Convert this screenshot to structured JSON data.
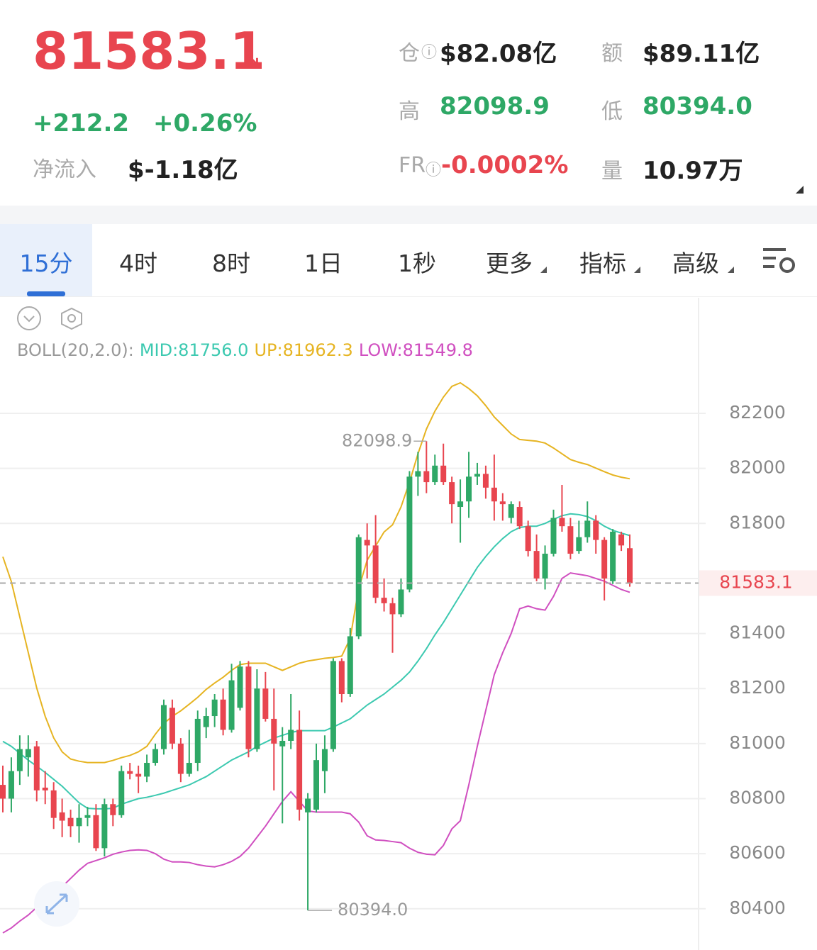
{
  "header": {
    "price": "81583.1",
    "change": "+212.2",
    "change_pct": "+0.26%",
    "net_inflow_label": "净流入",
    "net_inflow": "$-1.18亿",
    "stats": [
      {
        "label": "仓",
        "value": "$82.08亿"
      },
      {
        "label": "额",
        "value": "$89.11亿"
      },
      {
        "label": "高",
        "value": "82098.9"
      },
      {
        "label": "低",
        "value": "80394.0"
      },
      {
        "label": "FR",
        "value": "-0.0002%"
      },
      {
        "label": "量",
        "value": "10.97万"
      }
    ]
  },
  "tabs": [
    "15分",
    "4时",
    "8时",
    "1日",
    "1秒",
    "更多",
    "指标",
    "高级"
  ],
  "indicator": {
    "name": "BOLL(20,2.0):",
    "mid": "MID:81756.0",
    "up": "UP:81962.3",
    "low": "LOW:81549.8"
  },
  "chart_data": {
    "type": "candlestick",
    "up_color": "#2ea866",
    "down_color": "#e8454f",
    "open": [
      80850,
      80800,
      80900,
      80950,
      80990,
      80840,
      80830,
      80750,
      80730,
      80700,
      80730,
      80740,
      80620,
      80780,
      80740,
      80900,
      80890,
      80880,
      80930,
      80980,
      81130,
      81000,
      80890,
      80930,
      81060,
      81100,
      81160,
      81050,
      81130,
      81280,
      80980,
      81200,
      81090,
      80990,
      81010,
      81050,
      80750,
      80760,
      80900,
      80980,
      81300,
      81180,
      81390,
      81740,
      81720,
      81530,
      81510,
      81470,
      81560,
      81970,
      81990,
      81950,
      82010,
      81950,
      81860,
      81880,
      81970,
      81980,
      81930,
      81880,
      81820,
      81860,
      81790,
      81700,
      81600,
      81690,
      81820,
      81790,
      81700,
      81750,
      81810,
      81740,
      81590,
      81760,
      81710
    ],
    "high": [
      80920,
      80950,
      81030,
      81030,
      81010,
      80900,
      80860,
      80800,
      80760,
      80780,
      80770,
      80780,
      80800,
      80800,
      80920,
      80930,
      80920,
      80960,
      81000,
      81160,
      81160,
      81020,
      81050,
      81120,
      81130,
      81180,
      81200,
      81290,
      81300,
      81300,
      81270,
      81260,
      81200,
      81060,
      81180,
      81120,
      80820,
      81000,
      81030,
      81310,
      81310,
      81420,
      81760,
      81800,
      81830,
      81600,
      81530,
      81600,
      81990,
      82060,
      82098.9,
      82050,
      82090,
      81970,
      81960,
      82060,
      82020,
      82010,
      82050,
      81910,
      81880,
      81880,
      81810,
      81760,
      81720,
      81850,
      81940,
      81820,
      81810,
      81880,
      81830,
      81750,
      81780,
      81770,
      81760
    ],
    "low": [
      80750,
      80750,
      80850,
      80880,
      80790,
      80780,
      80690,
      80660,
      80660,
      80640,
      80700,
      80610,
      80590,
      80700,
      80730,
      80870,
      80820,
      80860,
      80920,
      80960,
      80980,
      80860,
      80880,
      80900,
      81020,
      81060,
      81030,
      81040,
      81120,
      80950,
      80970,
      81080,
      80830,
      80710,
      80980,
      80720,
      80394,
      80750,
      80820,
      80970,
      81150,
      81170,
      81380,
      81600,
      81510,
      81480,
      81330,
      81460,
      81550,
      81900,
      81910,
      81940,
      81940,
      81800,
      81730,
      81820,
      81940,
      81890,
      81810,
      81810,
      81800,
      81780,
      81680,
      81590,
      81560,
      81680,
      81770,
      81670,
      81690,
      81730,
      81690,
      81520,
      81580,
      81700,
      81570
    ],
    "close": [
      80800,
      80900,
      80980,
      80980,
      80830,
      80830,
      80730,
      80720,
      80700,
      80730,
      80740,
      80620,
      80780,
      80740,
      80900,
      80890,
      80880,
      80930,
      80980,
      81140,
      81000,
      80890,
      80930,
      81090,
      81100,
      81160,
      81050,
      81230,
      81280,
      80980,
      81200,
      81090,
      81000,
      81010,
      81050,
      80760,
      80800,
      80940,
      80980,
      81300,
      81180,
      81390,
      81750,
      81720,
      81530,
      81510,
      81470,
      81560,
      81970,
      81990,
      81950,
      82010,
      81950,
      81870,
      81880,
      81970,
      81980,
      81930,
      81880,
      81870,
      81870,
      81790,
      81700,
      81600,
      81690,
      81820,
      81790,
      81690,
      81750,
      81810,
      81740,
      81600,
      81770,
      81720,
      81583.1
    ],
    "lines": [
      {
        "color": "#3cc9b0",
        "values": [
          81008,
          80990,
          80965,
          80940,
          80918,
          80895,
          80870,
          80845,
          80815,
          80785,
          80765,
          80763,
          80763,
          80765,
          80780,
          80790,
          80800,
          80805,
          80812,
          80820,
          80830,
          80840,
          80850,
          80865,
          80880,
          80900,
          80920,
          80940,
          80955,
          80970,
          80990,
          81005,
          81020,
          81030,
          81040,
          81047,
          81047,
          81047,
          81047,
          81060,
          81075,
          81090,
          81115,
          81140,
          81160,
          81180,
          81205,
          81230,
          81260,
          81300,
          81345,
          81395,
          81440,
          81490,
          81540,
          81590,
          81640,
          81680,
          81715,
          81745,
          81770,
          81785,
          81790,
          81790,
          81800,
          81815,
          81828,
          81835,
          81832,
          81825,
          81810,
          81790,
          81775,
          81765,
          81756
        ]
      },
      {
        "color": "#e6b422",
        "values": [
          81679,
          81589,
          81460,
          81331,
          81202,
          81099,
          81021,
          80970,
          80944,
          80936,
          80931,
          80931,
          80931,
          80939,
          80949,
          80957,
          80970,
          80990,
          81034,
          81073,
          81099,
          81119,
          81143,
          81168,
          81197,
          81220,
          81241,
          81266,
          81287,
          81292,
          81292,
          81292,
          81279,
          81266,
          81279,
          81292,
          81300,
          81305,
          81310,
          81313,
          81318,
          81382,
          81563,
          81666,
          81718,
          81769,
          81795,
          81860,
          81950,
          82053,
          82143,
          82208,
          82259,
          82298,
          82311,
          82290,
          82264,
          82228,
          82187,
          82156,
          82125,
          82105,
          82102,
          82099,
          82092,
          82074,
          82053,
          82032,
          82022,
          82014,
          82001,
          81988,
          81976,
          81968,
          81962.3
        ]
      },
      {
        "color": "#d04fc0",
        "values": [
          80312,
          80330,
          80355,
          80377,
          80405,
          80430,
          80455,
          80480,
          80510,
          80540,
          80565,
          80575,
          80585,
          80598,
          80606,
          80612,
          80614,
          80612,
          80600,
          80580,
          80570,
          80570,
          80568,
          80560,
          80555,
          80552,
          80560,
          80572,
          80590,
          80620,
          80660,
          80700,
          80745,
          80790,
          80825,
          80790,
          80755,
          80751,
          80751,
          80751,
          80751,
          80745,
          80715,
          80665,
          80650,
          80648,
          80644,
          80640,
          80620,
          80605,
          80598,
          80596,
          80630,
          80690,
          80720,
          80850,
          80990,
          81120,
          81250,
          81330,
          81400,
          81490,
          81500,
          81490,
          81485,
          81535,
          81600,
          81620,
          81615,
          81610,
          81600,
          81590,
          81575,
          81560,
          81549.8
        ]
      }
    ],
    "ylim": [
      80250,
      82620
    ],
    "yticks": [
      80400,
      80600,
      80800,
      81000,
      81200,
      81400,
      81600,
      81800,
      82000,
      82200
    ],
    "grid": true,
    "last_price": 81583.1,
    "high_marker": 82098.9,
    "low_marker": {
      "value": 80394,
      "label": "80394.0"
    }
  }
}
